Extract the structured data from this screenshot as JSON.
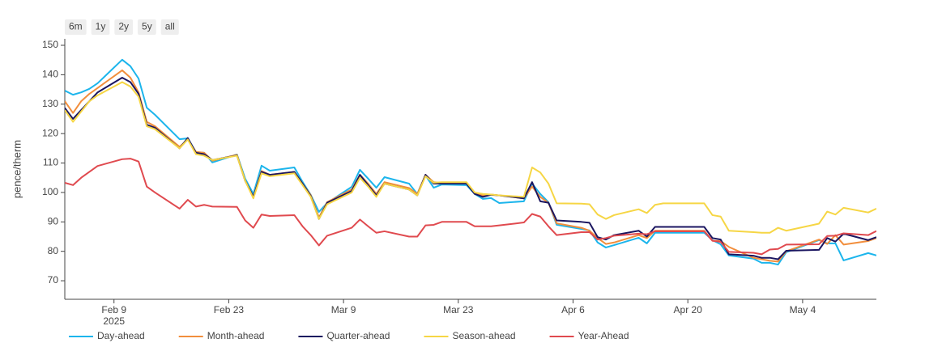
{
  "range_buttons": [
    "6m",
    "1y",
    "2y",
    "5y",
    "all"
  ],
  "chart_data": {
    "type": "line",
    "y_label": "pence/therm",
    "x_year_label": "2025",
    "x": [
      "2025-02-03",
      "2025-02-04",
      "2025-02-05",
      "2025-02-06",
      "2025-02-07",
      "2025-02-10",
      "2025-02-11",
      "2025-02-12",
      "2025-02-13",
      "2025-02-14",
      "2025-02-17",
      "2025-02-18",
      "2025-02-19",
      "2025-02-20",
      "2025-02-21",
      "2025-02-24",
      "2025-02-25",
      "2025-02-26",
      "2025-02-27",
      "2025-02-28",
      "2025-03-03",
      "2025-03-04",
      "2025-03-05",
      "2025-03-06",
      "2025-03-07",
      "2025-03-10",
      "2025-03-11",
      "2025-03-12",
      "2025-03-13",
      "2025-03-14",
      "2025-03-17",
      "2025-03-18",
      "2025-03-19",
      "2025-03-20",
      "2025-03-21",
      "2025-03-24",
      "2025-03-25",
      "2025-03-26",
      "2025-03-27",
      "2025-03-28",
      "2025-03-31",
      "2025-04-01",
      "2025-04-02",
      "2025-04-03",
      "2025-04-04",
      "2025-04-07",
      "2025-04-08",
      "2025-04-09",
      "2025-04-10",
      "2025-04-11",
      "2025-04-14",
      "2025-04-15",
      "2025-04-16",
      "2025-04-17",
      "2025-04-22",
      "2025-04-23",
      "2025-04-24",
      "2025-04-25",
      "2025-04-28",
      "2025-04-29",
      "2025-04-30",
      "2025-05-01",
      "2025-05-02",
      "2025-05-06",
      "2025-05-07",
      "2025-05-08",
      "2025-05-09",
      "2025-05-12",
      "2025-05-13"
    ],
    "series": [
      {
        "name": "Day-ahead",
        "color": "#1cb5ec",
        "values": [
          134.6,
          133.2,
          134,
          135.2,
          137.1,
          145.1,
          142.9,
          138.7,
          128.8,
          126.4,
          118.1,
          118.4,
          113.7,
          113.5,
          110.2,
          112.9,
          104.7,
          99.5,
          109.1,
          107.4,
          108.5,
          103.6,
          99.2,
          93.4,
          96.4,
          101.9,
          107.7,
          104.7,
          101.6,
          105.2,
          103,
          99.5,
          105.8,
          101.6,
          102.7,
          102.5,
          99.5,
          97.8,
          98.1,
          96.4,
          97,
          103,
          99.5,
          96.7,
          89,
          87.6,
          87.1,
          83,
          81.3,
          82.1,
          84.6,
          82.7,
          86.3,
          86.3,
          86.3,
          83.8,
          82.4,
          78.6,
          77.5,
          76.1,
          76.1,
          75.5,
          79.7,
          83.8,
          82.7,
          82.7,
          76.9,
          79.4,
          78.6
        ]
      },
      {
        "name": "Month-ahead",
        "color": "#f28e3c",
        "values": [
          131,
          127,
          131,
          133.5,
          135.5,
          141.5,
          139,
          134,
          124,
          122.5,
          115.5,
          118,
          113.8,
          113.5,
          110.8,
          112.8,
          104,
          98.5,
          107.3,
          106,
          107,
          103,
          99.1,
          91.5,
          96.7,
          101,
          106,
          103,
          99.5,
          103.5,
          101.5,
          99.5,
          106,
          103.5,
          103.2,
          103,
          100,
          99,
          99.3,
          99,
          98,
          102,
          98.5,
          96.5,
          89.5,
          88,
          87,
          84.5,
          82.5,
          83,
          85.5,
          84.5,
          87,
          87,
          87,
          83.6,
          83.5,
          81.5,
          77.8,
          77.3,
          76.8,
          76.5,
          80,
          84,
          82.5,
          85.5,
          82.3,
          83.5,
          84.5
        ]
      },
      {
        "name": "Quarter-ahead",
        "color": "#1b1660",
        "values": [
          128.7,
          125,
          128,
          131,
          134,
          139,
          137.5,
          133.5,
          123,
          122,
          115,
          118.5,
          113.5,
          113,
          111,
          112.6,
          104,
          98.5,
          107,
          106,
          107,
          103,
          98.8,
          91,
          96.5,
          100.5,
          106,
          102.5,
          99,
          103,
          101,
          99,
          106,
          103,
          103,
          103,
          99.5,
          98.5,
          99.2,
          99,
          98,
          103.5,
          97,
          96.5,
          90.5,
          90,
          89.7,
          84.8,
          84,
          85.5,
          87,
          85,
          88.3,
          88.3,
          88.3,
          84.5,
          84,
          79,
          78.5,
          77.8,
          77.8,
          77.3,
          80.2,
          80.5,
          84.5,
          83.3,
          86,
          83.8,
          84.8
        ]
      },
      {
        "name": "Season-ahead",
        "color": "#f6d645",
        "values": [
          128,
          124,
          127.5,
          131,
          133,
          137.5,
          136,
          132.5,
          122.5,
          121.5,
          115,
          118,
          113,
          112.5,
          111,
          112.5,
          104,
          98,
          106.5,
          105.5,
          106.5,
          102.5,
          98.5,
          91,
          96,
          100,
          105,
          102,
          98.5,
          103,
          101,
          99,
          105.5,
          103.3,
          103.5,
          103.5,
          100,
          99.5,
          99.3,
          99,
          98.5,
          108.5,
          106.8,
          103,
          96.3,
          96.2,
          96,
          92.5,
          91,
          92.3,
          94.3,
          93,
          95.8,
          96.3,
          96.3,
          92.3,
          91.8,
          87,
          86.5,
          86.3,
          86.3,
          88,
          87,
          89.4,
          93.5,
          92.5,
          94.8,
          93.2,
          94.5
        ]
      },
      {
        "name": "Year-Ahead",
        "color": "#e04a4f",
        "values": [
          103.3,
          102.5,
          105,
          107,
          109,
          111.3,
          111.5,
          110.5,
          102,
          100,
          94.5,
          97.5,
          95.2,
          95.8,
          95.2,
          95.1,
          90.5,
          88,
          92.5,
          92,
          92.3,
          88.5,
          85.5,
          82,
          85.3,
          88,
          90.8,
          88.5,
          86.3,
          86.8,
          85,
          85,
          88.8,
          89,
          90,
          90,
          88.5,
          88.5,
          88.5,
          88.8,
          89.8,
          92.7,
          91.8,
          88.5,
          85.5,
          86.5,
          86.5,
          84,
          84.5,
          85.3,
          86,
          85.8,
          86.8,
          86.8,
          86.8,
          83.6,
          83.2,
          79.8,
          79.5,
          79,
          80.6,
          80.8,
          82.3,
          82.4,
          85.2,
          85.3,
          86.1,
          85.5,
          86.9
        ]
      }
    ],
    "xlim": [
      "2025-02-03",
      "2025-05-13"
    ],
    "xticks": [
      {
        "value": "2025-02-09",
        "label": "Feb 9"
      },
      {
        "value": "2025-02-23",
        "label": "Feb 23"
      },
      {
        "value": "2025-03-09",
        "label": "Mar 9"
      },
      {
        "value": "2025-03-23",
        "label": "Mar 23"
      },
      {
        "value": "2025-04-06",
        "label": "Apr 6"
      },
      {
        "value": "2025-04-20",
        "label": "Apr 20"
      },
      {
        "value": "2025-05-04",
        "label": "May 4"
      }
    ],
    "ylim": [
      63.7,
      152.2
    ],
    "yticks": [
      70,
      80,
      90,
      100,
      110,
      120,
      130,
      140,
      150
    ],
    "grid": false,
    "legend": "bottom"
  }
}
